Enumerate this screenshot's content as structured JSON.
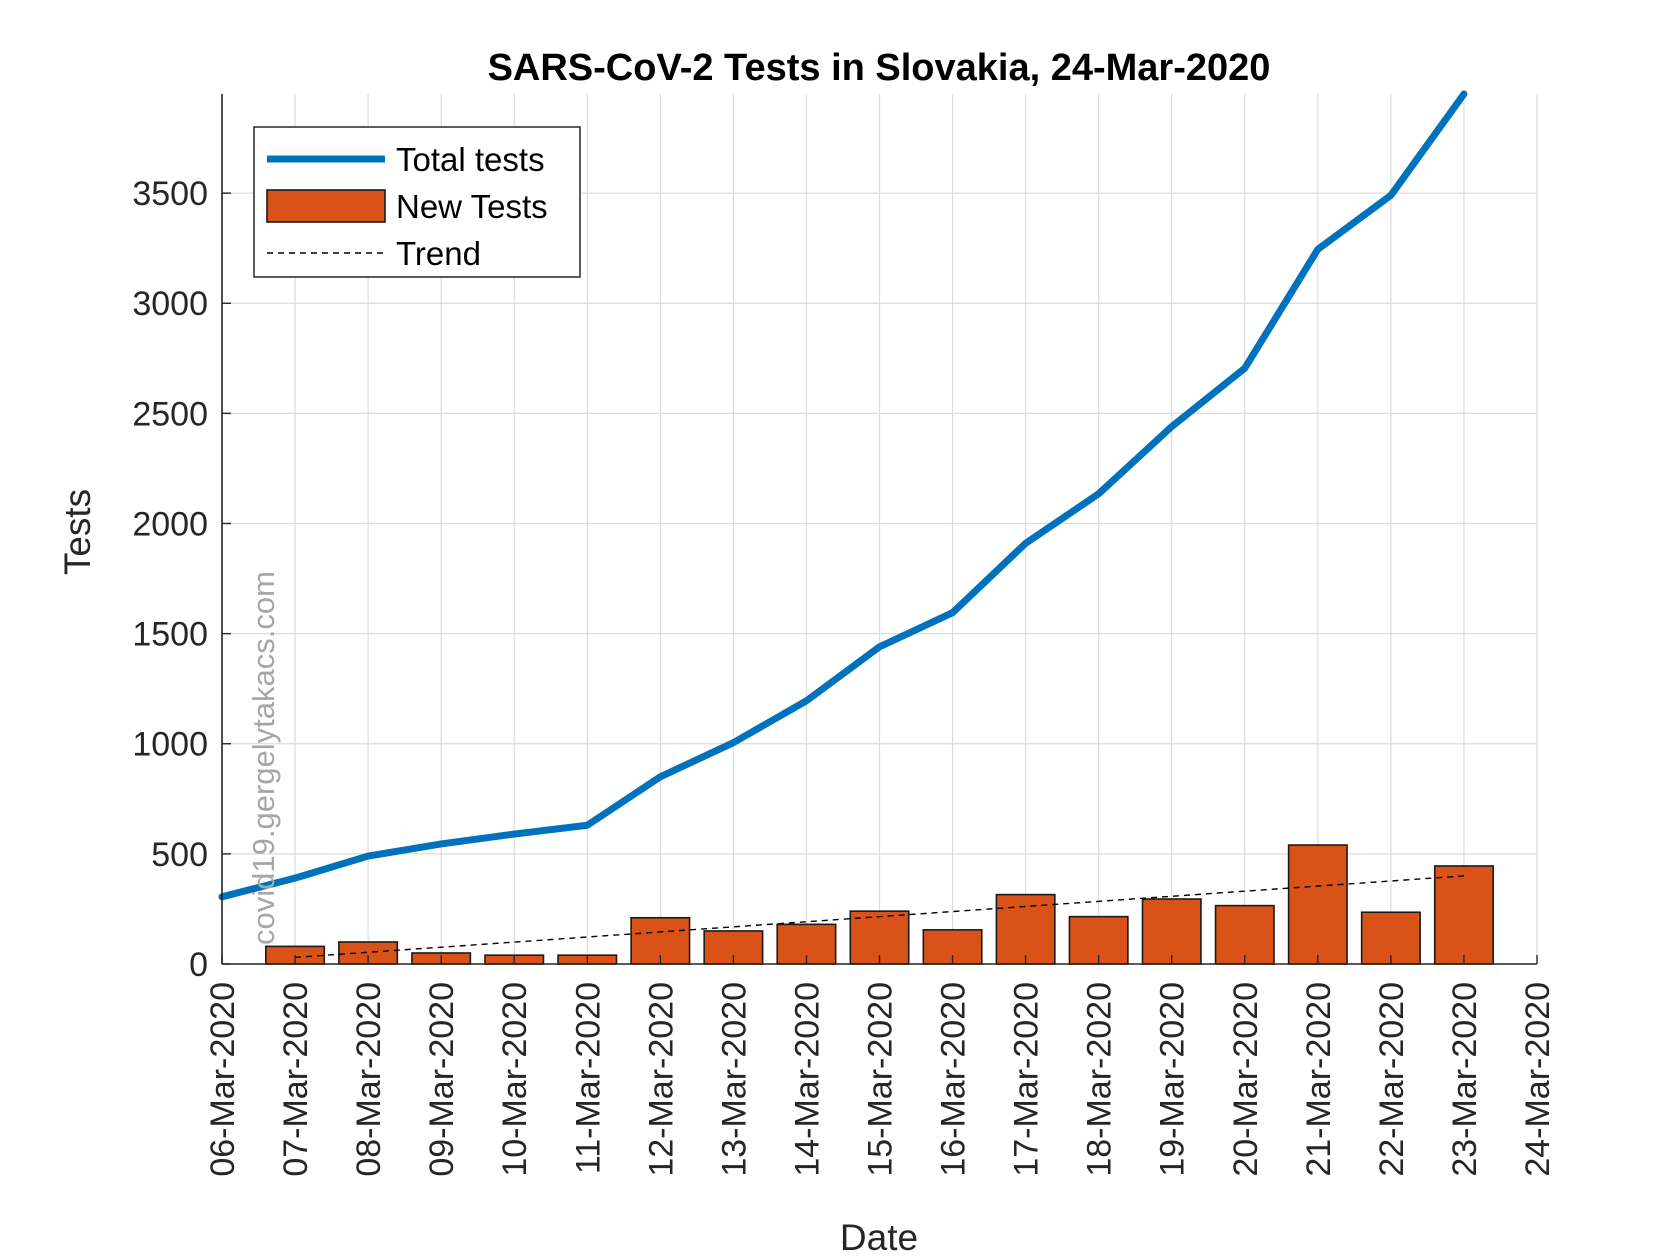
{
  "chart_data": {
    "type": "bar",
    "title": "SARS-CoV-2 Tests in Slovakia, 24-Mar-2020",
    "xlabel": "Date",
    "ylabel": "Tests",
    "watermark": "covid19.gergelytakacs.com",
    "ylim": [
      0,
      3950
    ],
    "yticks": [
      0,
      500,
      1000,
      1500,
      2000,
      2500,
      3000,
      3500
    ],
    "grid": true,
    "legend_position": "top-left",
    "xtick_labels": [
      "06-Mar-2020",
      "07-Mar-2020",
      "08-Mar-2020",
      "09-Mar-2020",
      "10-Mar-2020",
      "11-Mar-2020",
      "12-Mar-2020",
      "13-Mar-2020",
      "14-Mar-2020",
      "15-Mar-2020",
      "16-Mar-2020",
      "17-Mar-2020",
      "18-Mar-2020",
      "19-Mar-2020",
      "20-Mar-2020",
      "21-Mar-2020",
      "22-Mar-2020",
      "23-Mar-2020",
      "24-Mar-2020"
    ],
    "series": [
      {
        "name": "Total tests",
        "kind": "line",
        "color": "#0072BD",
        "x": [
          "06-Mar-2020",
          "07-Mar-2020",
          "08-Mar-2020",
          "09-Mar-2020",
          "10-Mar-2020",
          "11-Mar-2020",
          "12-Mar-2020",
          "13-Mar-2020",
          "14-Mar-2020",
          "15-Mar-2020",
          "16-Mar-2020",
          "17-Mar-2020",
          "18-Mar-2020",
          "19-Mar-2020",
          "20-Mar-2020",
          "21-Mar-2020",
          "22-Mar-2020",
          "23-Mar-2020"
        ],
        "values": [
          305,
          390,
          490,
          545,
          590,
          630,
          850,
          1005,
          1195,
          1440,
          1595,
          1910,
          2135,
          2440,
          2705,
          3245,
          3490,
          3950
        ]
      },
      {
        "name": "New Tests",
        "kind": "bar",
        "color": "#D95319",
        "x": [
          "07-Mar-2020",
          "08-Mar-2020",
          "09-Mar-2020",
          "10-Mar-2020",
          "11-Mar-2020",
          "12-Mar-2020",
          "13-Mar-2020",
          "14-Mar-2020",
          "15-Mar-2020",
          "16-Mar-2020",
          "17-Mar-2020",
          "18-Mar-2020",
          "19-Mar-2020",
          "20-Mar-2020",
          "21-Mar-2020",
          "22-Mar-2020",
          "23-Mar-2020"
        ],
        "values": [
          80,
          100,
          50,
          40,
          40,
          210,
          150,
          180,
          240,
          155,
          315,
          215,
          295,
          265,
          540,
          235,
          445
        ]
      },
      {
        "name": "Trend",
        "kind": "dashed-line",
        "color": "#000000",
        "x": [
          "07-Mar-2020",
          "23-Mar-2020"
        ],
        "values": [
          30,
          400
        ]
      }
    ]
  }
}
